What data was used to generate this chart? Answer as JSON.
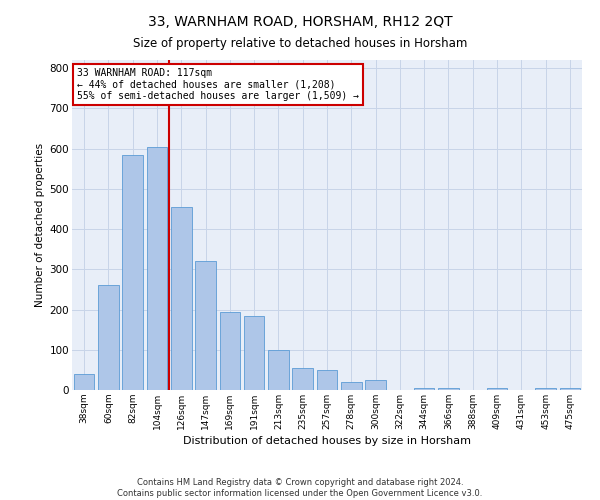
{
  "title": "33, WARNHAM ROAD, HORSHAM, RH12 2QT",
  "subtitle": "Size of property relative to detached houses in Horsham",
  "xlabel": "Distribution of detached houses by size in Horsham",
  "ylabel": "Number of detached properties",
  "footer_line1": "Contains HM Land Registry data © Crown copyright and database right 2024.",
  "footer_line2": "Contains public sector information licensed under the Open Government Licence v3.0.",
  "bar_labels": [
    "38sqm",
    "60sqm",
    "82sqm",
    "104sqm",
    "126sqm",
    "147sqm",
    "169sqm",
    "191sqm",
    "213sqm",
    "235sqm",
    "257sqm",
    "278sqm",
    "300sqm",
    "322sqm",
    "344sqm",
    "366sqm",
    "388sqm",
    "409sqm",
    "431sqm",
    "453sqm",
    "475sqm"
  ],
  "bar_values": [
    40,
    260,
    585,
    605,
    455,
    320,
    195,
    185,
    100,
    55,
    50,
    20,
    25,
    0,
    5,
    5,
    0,
    5,
    0,
    5,
    5
  ],
  "bar_color": "#aec6e8",
  "bar_edge_color": "#5b9bd5",
  "grid_color": "#c8d4e8",
  "vline_color": "#cc0000",
  "annotation_text": "33 WARNHAM ROAD: 117sqm\n← 44% of detached houses are smaller (1,208)\n55% of semi-detached houses are larger (1,509) →",
  "annotation_box_color": "#ffffff",
  "annotation_box_edge": "#cc0000",
  "ylim": [
    0,
    820
  ],
  "yticks": [
    0,
    100,
    200,
    300,
    400,
    500,
    600,
    700,
    800
  ],
  "background_color": "#e8eef8",
  "vline_pos": 3.5
}
